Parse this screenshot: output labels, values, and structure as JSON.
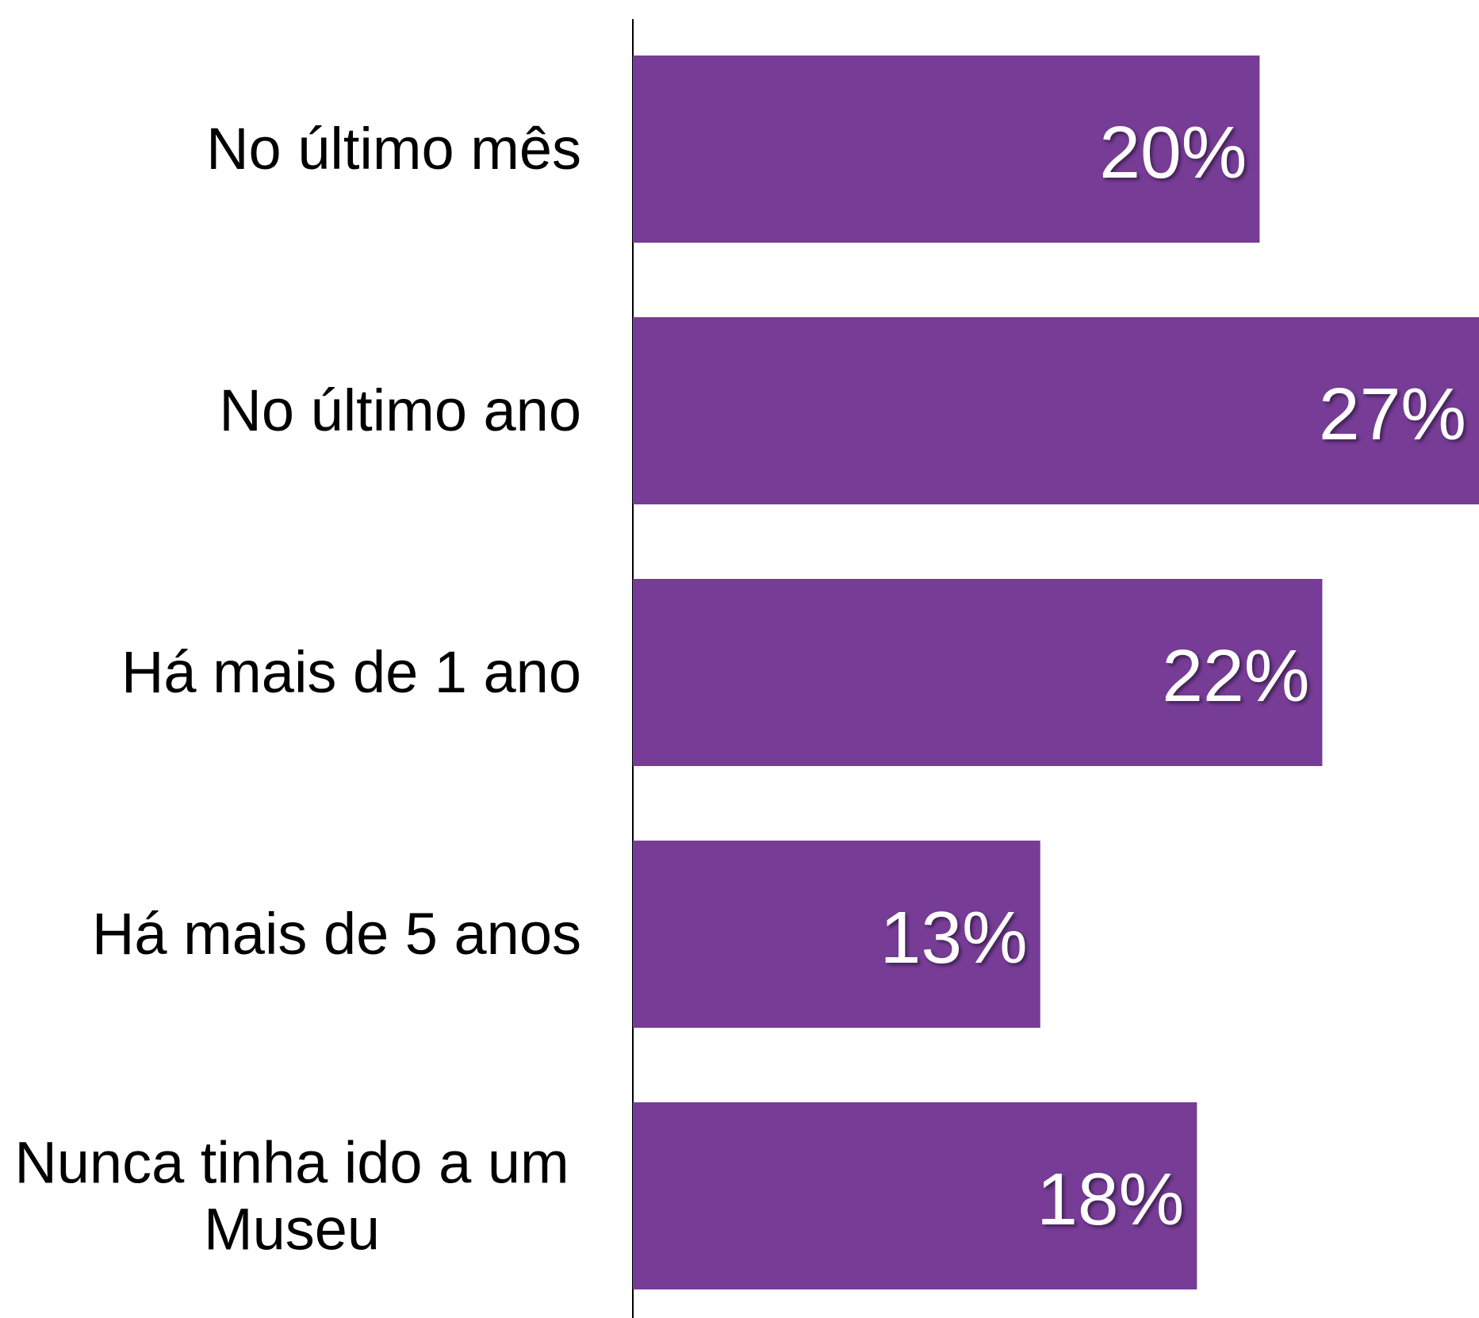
{
  "chart_data": {
    "type": "bar",
    "orientation": "horizontal",
    "categories": [
      "No último mês",
      "No último ano",
      "Há mais de 1 ano",
      "Há mais de 5 anos",
      "Nunca tinha ido a um Museu"
    ],
    "values": [
      20,
      27,
      22,
      13,
      18
    ],
    "value_labels": [
      "20%",
      "27%",
      "22%",
      "13%",
      "18%"
    ],
    "color": "#763c96",
    "xlim": [
      0,
      27
    ]
  }
}
